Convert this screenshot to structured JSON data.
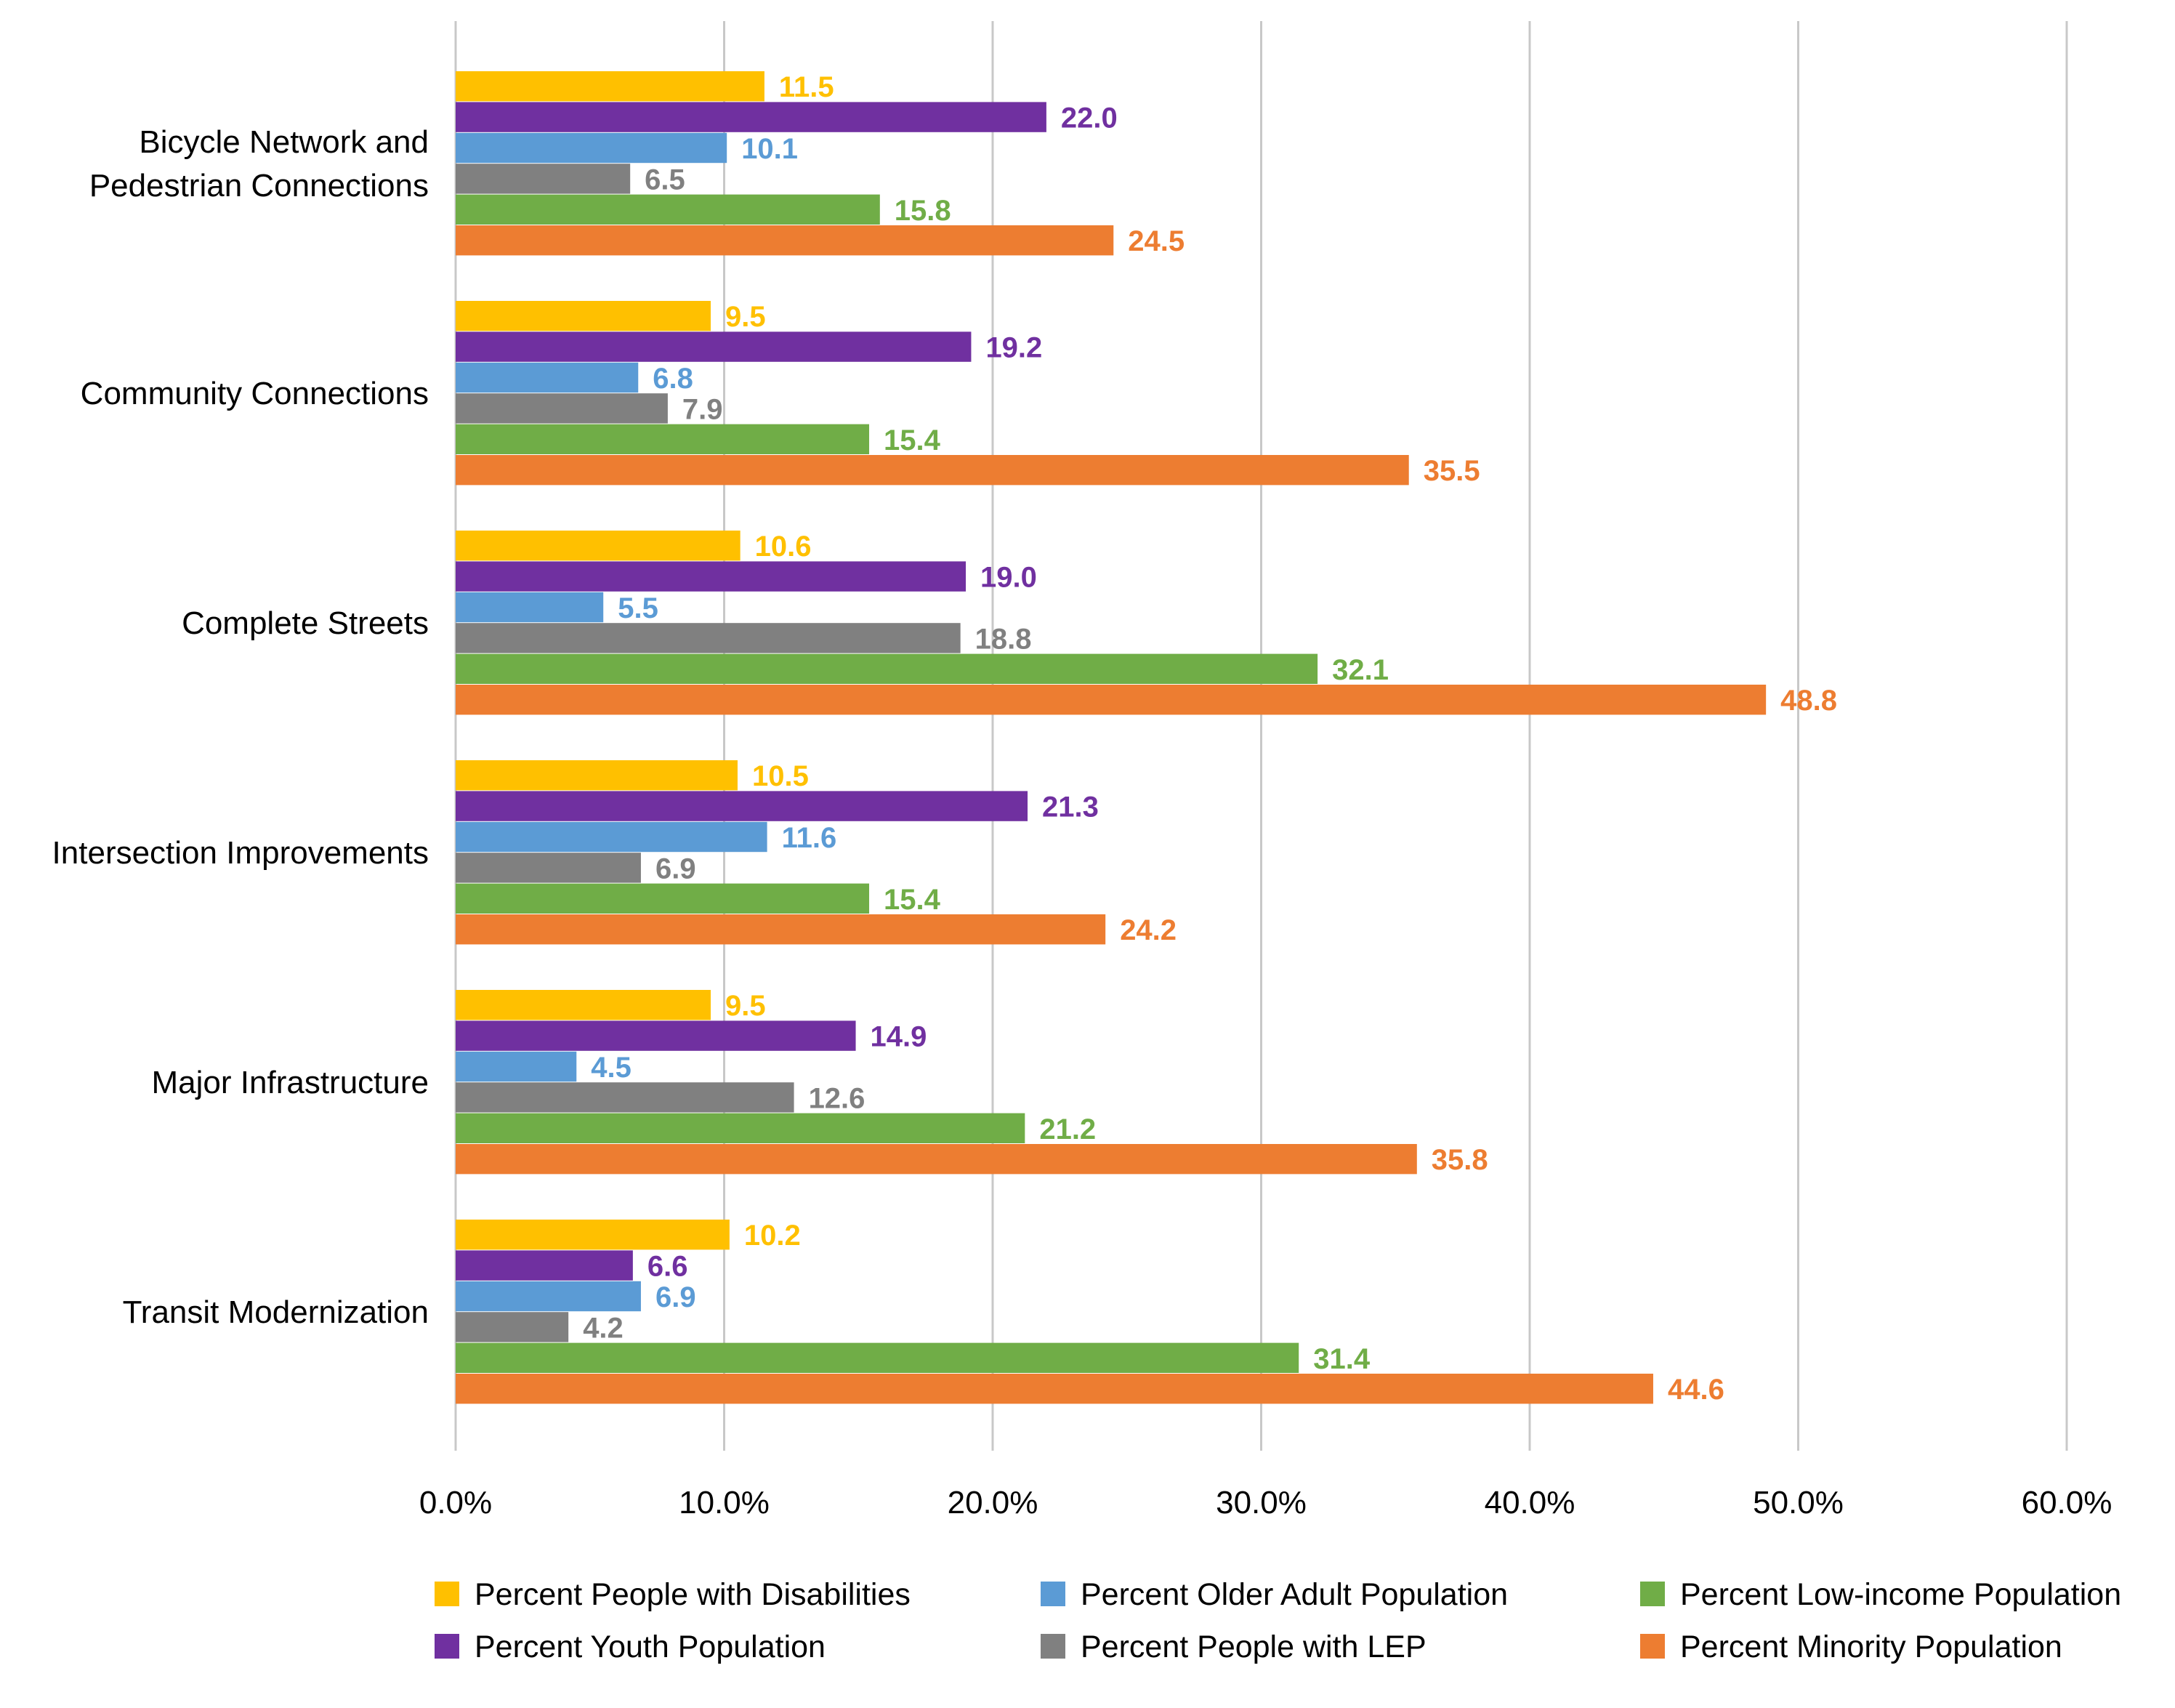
{
  "chart_data": {
    "type": "bar",
    "orientation": "horizontal",
    "categories": [
      "Bicycle Network and Pedestrian Connections",
      "Community Connections",
      "Complete Streets",
      "Intersection Improvements",
      "Major Infrastructure",
      "Transit Modernization"
    ],
    "category_lines": [
      [
        "Bicycle Network and",
        "Pedestrian Connections"
      ],
      [
        "Community Connections"
      ],
      [
        "Complete Streets"
      ],
      [
        "Intersection Improvements"
      ],
      [
        "Major Infrastructure"
      ],
      [
        "Transit Modernization"
      ]
    ],
    "series": [
      {
        "name": "Percent People with Disabilities",
        "color": "#FFC000",
        "values": [
          11.5,
          9.5,
          10.6,
          10.5,
          9.5,
          10.2
        ]
      },
      {
        "name": "Percent Youth Population",
        "color": "#7030A0",
        "values": [
          22.0,
          19.2,
          19.0,
          21.3,
          14.9,
          6.6
        ]
      },
      {
        "name": "Percent Older Adult Population",
        "color": "#5B9BD5",
        "values": [
          10.1,
          6.8,
          5.5,
          11.6,
          4.5,
          6.9
        ]
      },
      {
        "name": "Percent People with LEP",
        "color": "#808080",
        "values": [
          6.5,
          7.9,
          18.8,
          6.9,
          12.6,
          4.2
        ]
      },
      {
        "name": "Percent Low-income Population",
        "color": "#70AD47",
        "values": [
          15.8,
          15.4,
          32.1,
          15.4,
          21.2,
          31.4
        ]
      },
      {
        "name": "Percent Minority Population",
        "color": "#ED7D31",
        "values": [
          24.5,
          35.5,
          48.8,
          24.2,
          35.8,
          44.6
        ]
      }
    ],
    "xlim": [
      0,
      60
    ],
    "xticks": [
      "0.0%",
      "10.0%",
      "20.0%",
      "30.0%",
      "40.0%",
      "50.0%",
      "60.0%"
    ],
    "grid": true,
    "data_labels": true,
    "legend": {
      "placement": "bottom",
      "order": [
        "Percent People with Disabilities",
        "Percent Older Adult Population",
        "Percent Low-income Population",
        "Percent Youth Population",
        "Percent People with LEP",
        "Percent Minority Population"
      ]
    }
  }
}
